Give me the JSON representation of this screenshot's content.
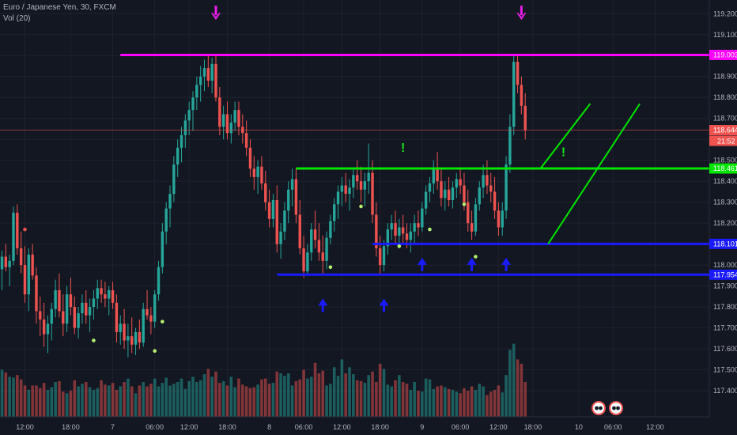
{
  "header": {
    "symbol": "Euro / Japanese Yen, 30, FXCM",
    "indicator": "Vol (20)"
  },
  "chart_data": {
    "type": "candlestick",
    "price_axis": {
      "ticks": [
        "119.200",
        "119.100",
        "119.000",
        "118.900",
        "118.800",
        "118.700",
        "118.600",
        "118.500",
        "118.400",
        "118.300",
        "118.200",
        "118.100",
        "118.000",
        "117.900",
        "117.800",
        "117.700",
        "117.600",
        "117.500",
        "117.400"
      ],
      "range": [
        117.37,
        119.235
      ]
    },
    "time_axis": {
      "labels": [
        {
          "text": "12:00",
          "bar": 6
        },
        {
          "text": "18:00",
          "bar": 18
        },
        {
          "text": "7",
          "bar": 29
        },
        {
          "text": "06:00",
          "bar": 40
        },
        {
          "text": "12:00",
          "bar": 49
        },
        {
          "text": "18:00",
          "bar": 59
        },
        {
          "text": "8",
          "bar": 70
        },
        {
          "text": "06:00",
          "bar": 79
        },
        {
          "text": "12:00",
          "bar": 89
        },
        {
          "text": "18:00",
          "bar": 99
        },
        {
          "text": "9",
          "bar": 110
        },
        {
          "text": "06:00",
          "bar": 120
        },
        {
          "text": "12:00",
          "bar": 130
        },
        {
          "text": "18:00",
          "bar": 139
        },
        {
          "text": "10",
          "bar": 151
        },
        {
          "text": "06:00",
          "bar": 160
        },
        {
          "text": "12:00",
          "bar": 171
        }
      ]
    },
    "current_price": {
      "label": "118.644",
      "value": 118.644,
      "countdown": "21:52",
      "color": "#ef5350"
    },
    "horizontal_levels": [
      {
        "label": "119.003",
        "value": 119.003,
        "from_bar": 31,
        "color": "#ff00ff"
      },
      {
        "label": "118.461",
        "value": 118.461,
        "from_bar": 77,
        "color": "#00e600"
      },
      {
        "label": "118.101",
        "value": 118.101,
        "from_bar": 97,
        "color": "#1a1aff"
      },
      {
        "label": "117.954",
        "value": 117.954,
        "from_bar": 72,
        "color": "#1a1aff"
      }
    ],
    "trend_lines": [
      {
        "p1": [
          141,
          118.461
        ],
        "p2": [
          154,
          118.77
        ],
        "color": "#00e600"
      },
      {
        "p1": [
          143,
          118.101
        ],
        "p2": [
          167,
          118.77
        ],
        "color": "#00e600"
      }
    ],
    "arrows_down": [
      {
        "bar": 56,
        "price": 119.17,
        "color": "#e91ee9"
      },
      {
        "bar": 136,
        "price": 119.17,
        "color": "#e91ee9"
      }
    ],
    "arrows_up": [
      {
        "bar": 84,
        "price": 117.84,
        "color": "#1a1aff"
      },
      {
        "bar": 100,
        "price": 117.84,
        "color": "#1a1aff"
      },
      {
        "bar": 110,
        "price": 118.035,
        "color": "#1a1aff"
      },
      {
        "bar": 123,
        "price": 118.035,
        "color": "#1a1aff"
      },
      {
        "bar": 132,
        "price": 118.035,
        "color": "#1a1aff"
      }
    ],
    "exclamations": [
      {
        "text": "!",
        "bar": 105,
        "price": 118.54
      },
      {
        "text": "!",
        "bar": 147,
        "price": 118.52
      }
    ],
    "signal_dots": [
      {
        "bar": 6,
        "price": 118.17,
        "color": "#ef5350"
      },
      {
        "bar": 24,
        "price": 117.64,
        "color": "#b6f06d"
      },
      {
        "bar": 42,
        "price": 117.73,
        "color": "#b6f06d"
      },
      {
        "bar": 40,
        "price": 117.59,
        "color": "#b6f06d"
      },
      {
        "bar": 86,
        "price": 117.99,
        "color": "#b6f06d"
      },
      {
        "bar": 94,
        "price": 118.28,
        "color": "#b6f06d"
      },
      {
        "bar": 104,
        "price": 118.09,
        "color": "#b6f06d"
      },
      {
        "bar": 112,
        "price": 118.17,
        "color": "#b6f06d"
      },
      {
        "bar": 121,
        "price": 118.29,
        "color": "#b6f06d"
      },
      {
        "bar": 124,
        "price": 118.04,
        "color": "#b6f06d"
      }
    ],
    "candles": [
      [
        117.98,
        118.07,
        117.88,
        118.04
      ],
      [
        118.04,
        118.1,
        117.97,
        117.99
      ],
      [
        117.99,
        118.05,
        117.9,
        118.02
      ],
      [
        118.02,
        118.28,
        118.0,
        118.25
      ],
      [
        118.25,
        118.29,
        118.05,
        118.08
      ],
      [
        118.08,
        118.16,
        117.96,
        118.0
      ],
      [
        118.0,
        118.09,
        117.82,
        117.86
      ],
      [
        117.86,
        118.08,
        117.78,
        118.05
      ],
      [
        118.05,
        118.1,
        117.93,
        117.95
      ],
      [
        117.95,
        117.99,
        117.72,
        117.78
      ],
      [
        117.78,
        117.85,
        117.66,
        117.74
      ],
      [
        117.74,
        117.82,
        117.61,
        117.67
      ],
      [
        117.67,
        117.76,
        117.58,
        117.72
      ],
      [
        117.72,
        117.82,
        117.64,
        117.79
      ],
      [
        117.79,
        117.93,
        117.75,
        117.88
      ],
      [
        117.88,
        117.96,
        117.75,
        117.78
      ],
      [
        117.78,
        117.86,
        117.66,
        117.72
      ],
      [
        117.72,
        117.9,
        117.68,
        117.86
      ],
      [
        117.86,
        117.94,
        117.76,
        117.8
      ],
      [
        117.8,
        117.85,
        117.67,
        117.7
      ],
      [
        117.7,
        117.8,
        117.65,
        117.77
      ],
      [
        117.77,
        117.86,
        117.72,
        117.82
      ],
      [
        117.82,
        117.88,
        117.72,
        117.76
      ],
      [
        117.76,
        117.84,
        117.68,
        117.8
      ],
      [
        117.8,
        117.88,
        117.74,
        117.84
      ],
      [
        117.84,
        117.93,
        117.79,
        117.89
      ],
      [
        117.89,
        117.93,
        117.82,
        117.86
      ],
      [
        117.86,
        117.92,
        117.8,
        117.84
      ],
      [
        117.84,
        117.9,
        117.76,
        117.88
      ],
      [
        117.88,
        117.92,
        117.79,
        117.82
      ],
      [
        117.82,
        117.86,
        117.63,
        117.68
      ],
      [
        117.68,
        117.76,
        117.62,
        117.72
      ],
      [
        117.72,
        117.79,
        117.6,
        117.64
      ],
      [
        117.64,
        117.72,
        117.56,
        117.66
      ],
      [
        117.66,
        117.75,
        117.58,
        117.62
      ],
      [
        117.62,
        117.7,
        117.57,
        117.68
      ],
      [
        117.68,
        117.74,
        117.6,
        117.63
      ],
      [
        117.63,
        117.82,
        117.61,
        117.79
      ],
      [
        117.79,
        117.88,
        117.74,
        117.76
      ],
      [
        117.76,
        117.8,
        117.67,
        117.73
      ],
      [
        117.73,
        117.88,
        117.7,
        117.86
      ],
      [
        117.86,
        118.02,
        117.83,
        117.99
      ],
      [
        117.99,
        118.2,
        117.96,
        118.16
      ],
      [
        118.16,
        118.3,
        118.1,
        118.27
      ],
      [
        118.27,
        118.38,
        118.18,
        118.34
      ],
      [
        118.34,
        118.52,
        118.3,
        118.48
      ],
      [
        118.48,
        118.6,
        118.42,
        118.56
      ],
      [
        118.56,
        118.66,
        118.49,
        118.62
      ],
      [
        118.62,
        118.72,
        118.56,
        118.69
      ],
      [
        118.69,
        118.78,
        118.62,
        118.74
      ],
      [
        118.74,
        118.83,
        118.64,
        118.8
      ],
      [
        118.8,
        118.9,
        118.74,
        118.86
      ],
      [
        118.86,
        118.95,
        118.78,
        118.9
      ],
      [
        118.9,
        118.98,
        118.83,
        118.94
      ],
      [
        118.94,
        119.0,
        118.85,
        118.88
      ],
      [
        118.88,
        118.99,
        118.82,
        118.96
      ],
      [
        118.96,
        119.003,
        118.78,
        118.8
      ],
      [
        118.8,
        118.85,
        118.62,
        118.66
      ],
      [
        118.66,
        118.76,
        118.6,
        118.72
      ],
      [
        118.72,
        118.78,
        118.6,
        118.63
      ],
      [
        118.63,
        118.72,
        118.58,
        118.68
      ],
      [
        118.68,
        118.78,
        118.64,
        118.74
      ],
      [
        118.74,
        118.78,
        118.62,
        118.66
      ],
      [
        118.66,
        118.72,
        118.58,
        118.63
      ],
      [
        118.63,
        118.69,
        118.52,
        118.56
      ],
      [
        118.56,
        118.6,
        118.42,
        118.46
      ],
      [
        118.46,
        118.52,
        118.36,
        118.42
      ],
      [
        118.42,
        118.5,
        118.34,
        118.47
      ],
      [
        118.47,
        118.52,
        118.36,
        118.39
      ],
      [
        118.39,
        118.45,
        118.26,
        118.3
      ],
      [
        118.3,
        118.36,
        118.18,
        118.22
      ],
      [
        118.22,
        118.34,
        118.18,
        118.31
      ],
      [
        118.31,
        118.38,
        118.06,
        118.1
      ],
      [
        118.1,
        118.2,
        118.03,
        118.16
      ],
      [
        118.16,
        118.3,
        118.12,
        118.26
      ],
      [
        118.26,
        118.4,
        118.2,
        118.36
      ],
      [
        118.36,
        118.46,
        118.28,
        118.41
      ],
      [
        118.41,
        118.46,
        118.2,
        118.24
      ],
      [
        118.24,
        118.31,
        118.05,
        118.08
      ],
      [
        118.08,
        118.14,
        117.94,
        117.97
      ],
      [
        117.97,
        118.1,
        117.95,
        118.06
      ],
      [
        118.06,
        118.2,
        118.02,
        118.17
      ],
      [
        118.17,
        118.26,
        118.08,
        118.12
      ],
      [
        118.12,
        118.2,
        118.02,
        118.06
      ],
      [
        118.06,
        118.14,
        117.96,
        118.02
      ],
      [
        118.02,
        118.16,
        117.98,
        118.13
      ],
      [
        118.13,
        118.24,
        118.1,
        118.21
      ],
      [
        118.21,
        118.32,
        118.16,
        118.29
      ],
      [
        118.29,
        118.38,
        118.22,
        118.35
      ],
      [
        118.35,
        118.42,
        118.28,
        118.38
      ],
      [
        118.38,
        118.44,
        118.3,
        118.34
      ],
      [
        118.34,
        118.41,
        118.26,
        118.37
      ],
      [
        118.37,
        118.46,
        118.32,
        118.43
      ],
      [
        118.43,
        118.5,
        118.36,
        118.4
      ],
      [
        118.4,
        118.47,
        118.3,
        118.36
      ],
      [
        118.36,
        118.44,
        118.28,
        118.4
      ],
      [
        118.4,
        118.58,
        118.34,
        118.44
      ],
      [
        118.44,
        118.5,
        118.2,
        118.24
      ],
      [
        118.24,
        118.3,
        118.04,
        118.08
      ],
      [
        118.08,
        118.14,
        117.95,
        118.0
      ],
      [
        118.0,
        118.12,
        117.97,
        118.09
      ],
      [
        118.09,
        118.2,
        118.05,
        118.17
      ],
      [
        118.17,
        118.24,
        118.12,
        118.2
      ],
      [
        118.2,
        118.26,
        118.1,
        118.14
      ],
      [
        118.14,
        118.22,
        118.08,
        118.18
      ],
      [
        118.18,
        118.24,
        118.1,
        118.15
      ],
      [
        118.15,
        118.2,
        118.08,
        118.12
      ],
      [
        118.12,
        118.2,
        118.06,
        118.16
      ],
      [
        118.16,
        118.24,
        118.1,
        118.2
      ],
      [
        118.2,
        118.26,
        118.14,
        118.18
      ],
      [
        118.18,
        118.3,
        118.16,
        118.27
      ],
      [
        118.27,
        118.38,
        118.24,
        118.35
      ],
      [
        118.35,
        118.42,
        118.3,
        118.39
      ],
      [
        118.39,
        118.5,
        118.34,
        118.46
      ],
      [
        118.46,
        118.54,
        118.36,
        118.4
      ],
      [
        118.4,
        118.46,
        118.28,
        118.32
      ],
      [
        118.32,
        118.4,
        118.26,
        118.36
      ],
      [
        118.36,
        118.42,
        118.28,
        118.31
      ],
      [
        118.31,
        118.4,
        118.27,
        118.37
      ],
      [
        118.37,
        118.44,
        118.32,
        118.41
      ],
      [
        118.41,
        118.46,
        118.34,
        118.38
      ],
      [
        118.38,
        118.44,
        118.26,
        118.3
      ],
      [
        118.3,
        118.36,
        118.16,
        118.2
      ],
      [
        118.2,
        118.26,
        118.12,
        118.16
      ],
      [
        118.16,
        118.32,
        118.14,
        118.29
      ],
      [
        118.29,
        118.4,
        118.26,
        118.37
      ],
      [
        118.37,
        118.48,
        118.32,
        118.43
      ],
      [
        118.43,
        118.5,
        118.34,
        118.38
      ],
      [
        118.38,
        118.44,
        118.3,
        118.35
      ],
      [
        118.35,
        118.42,
        118.22,
        118.26
      ],
      [
        118.26,
        118.3,
        118.14,
        118.18
      ],
      [
        118.18,
        118.3,
        118.14,
        118.26
      ],
      [
        118.26,
        118.52,
        118.22,
        118.48
      ],
      [
        118.48,
        118.72,
        118.44,
        118.66
      ],
      [
        118.66,
        119.0,
        118.62,
        118.97
      ],
      [
        118.97,
        119.003,
        118.82,
        118.86
      ],
      [
        118.86,
        118.9,
        118.72,
        118.76
      ],
      [
        118.76,
        118.82,
        118.6,
        118.644
      ]
    ],
    "volume": [
      54,
      51,
      46,
      45,
      48,
      43,
      36,
      31,
      36,
      36,
      33,
      39,
      31,
      34,
      40,
      41,
      29,
      27,
      30,
      42,
      35,
      38,
      40,
      34,
      31,
      33,
      42,
      37,
      36,
      39,
      31,
      35,
      40,
      44,
      35,
      27,
      36,
      40,
      35,
      38,
      44,
      35,
      39,
      45,
      36,
      38,
      40,
      44,
      32,
      41,
      46,
      40,
      42,
      49,
      55,
      46,
      52,
      39,
      41,
      36,
      46,
      34,
      44,
      37,
      35,
      33,
      34,
      37,
      43,
      44,
      38,
      39,
      52,
      50,
      47,
      50,
      36,
      41,
      43,
      54,
      44,
      46,
      62,
      50,
      53,
      36,
      38,
      57,
      47,
      66,
      50,
      57,
      49,
      42,
      41,
      39,
      48,
      52,
      40,
      61,
      55,
      37,
      35,
      42,
      48,
      40,
      38,
      31,
      40,
      30,
      29,
      44,
      43,
      32,
      35,
      36,
      34,
      32,
      31,
      29,
      27,
      33,
      30,
      35,
      31,
      38,
      35,
      25,
      29,
      31,
      36,
      28,
      48,
      77,
      84,
      66,
      61,
      40
    ]
  }
}
